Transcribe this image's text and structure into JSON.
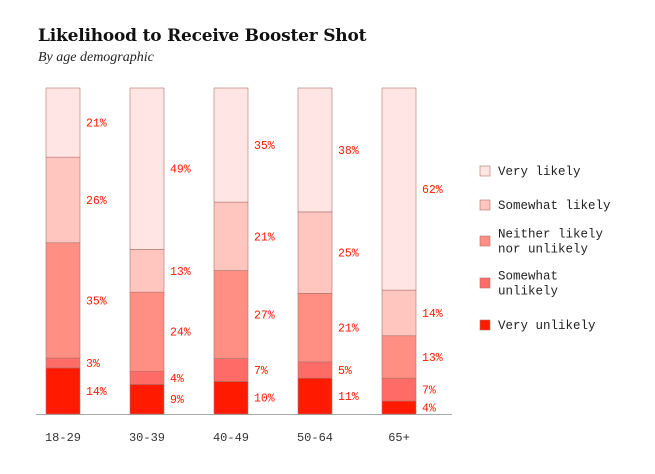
{
  "chart_data": {
    "type": "bar",
    "stacked": true,
    "normalized_percent": true,
    "title": "Likelihood to Receive Booster Shot",
    "subtitle": "By age demographic",
    "categories": [
      "18-29",
      "30-39",
      "40-49",
      "50-64",
      "65+"
    ],
    "series": [
      {
        "name": "Very unlikely",
        "color": "#ff1a00",
        "values": [
          14,
          9,
          10,
          11,
          4
        ]
      },
      {
        "name": "Somewhat unlikely",
        "color": "#ff6b66",
        "values": [
          3,
          4,
          7,
          5,
          7
        ]
      },
      {
        "name": "Neither likely nor unlikely",
        "color": "#ff8f82",
        "values": [
          35,
          24,
          27,
          21,
          13
        ]
      },
      {
        "name": "Somewhat likely",
        "color": "#ffc6bf",
        "values": [
          26,
          13,
          21,
          25,
          14
        ]
      },
      {
        "name": "Very likely",
        "color": "#ffe6e4",
        "values": [
          21,
          49,
          35,
          38,
          62
        ]
      }
    ],
    "legend_labels": [
      [
        "Very likely"
      ],
      [
        "Somewhat likely"
      ],
      [
        "Neither likely",
        "nor unlikely"
      ],
      [
        "Somewhat",
        "unlikely"
      ],
      [
        "Very unlikely"
      ]
    ],
    "legend_position": "right",
    "label_color": "#ff1a00",
    "grid": false
  }
}
